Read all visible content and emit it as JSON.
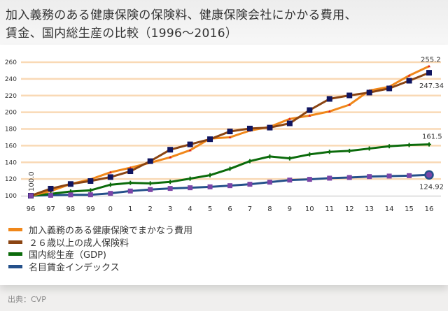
{
  "title": {
    "line1": "加入義務のある健康保険の保険料、健康保険会社にかかる費用、",
    "line2": "賃金、国内総生産の比較（1996～2016）"
  },
  "source": "出典：CVP",
  "chart_data": {
    "type": "line",
    "title": "加入義務のある健康保険の保険料、健康保険会社にかかる費用、賃金、国内総生産の比較（1996～2016）",
    "xlabel": "",
    "ylabel": "",
    "x": [
      "96",
      "97",
      "98",
      "99",
      "0",
      "1",
      "2",
      "3",
      "4",
      "5",
      "6",
      "7",
      "8",
      "9",
      "10",
      "11",
      "12",
      "13",
      "14",
      "15",
      "16"
    ],
    "ylim": [
      100,
      260
    ],
    "yticks": [
      100,
      120,
      140,
      160,
      180,
      200,
      220,
      240,
      260
    ],
    "grid": true,
    "legend_position": "bottom-left",
    "series": [
      {
        "name": "加入義務のある健康保険でまかなう費用",
        "color": "#f0871a",
        "marker": "triangle",
        "markerColor": "#e02020",
        "values": [
          100,
          105.6,
          114,
          119.6,
          128,
          133.5,
          139.5,
          146,
          154.5,
          168.5,
          170,
          178,
          182.5,
          192,
          196,
          201,
          209,
          226,
          230.5,
          244,
          255.2
        ]
      },
      {
        "name": "２６歳以上の成人保険料",
        "color": "#8b4513",
        "marker": "square",
        "markerColor": "#101560",
        "values": [
          100,
          108.4,
          114,
          117.6,
          122.3,
          129.3,
          141.4,
          155.1,
          161.5,
          167.7,
          177,
          180.5,
          181.6,
          186.7,
          202.6,
          216,
          220.2,
          223.6,
          228.6,
          237.8,
          247.34
        ]
      },
      {
        "name": "国内総生産（GDP)",
        "color": "#0b6b0b",
        "marker": "plus",
        "markerColor": "#0b6b0b",
        "values": [
          100,
          102.2,
          105,
          106.4,
          113.1,
          115.4,
          114.8,
          116.5,
          120.4,
          124.6,
          132.2,
          141.4,
          147,
          144.7,
          149.5,
          152.6,
          153.7,
          156.5,
          159.3,
          160.7,
          161.5
        ]
      },
      {
        "name": "名目賃金インデックス",
        "color": "#24508a",
        "marker": "square",
        "markerColor": "#7b45a8",
        "values": [
          100,
          100.5,
          101,
          101.1,
          102.8,
          105.6,
          107.3,
          108.7,
          109.5,
          110.6,
          112,
          113.7,
          116.2,
          118.7,
          119.6,
          121,
          121.8,
          122.9,
          123.5,
          124,
          124.92
        ]
      }
    ],
    "annotations": [
      {
        "text": "100.0",
        "series": 1,
        "index": 0
      },
      {
        "text": "255.2",
        "series": 0,
        "index": 20
      },
      {
        "text": "247.34",
        "series": 1,
        "index": 20
      },
      {
        "text": "161.5",
        "series": 2,
        "index": 20
      },
      {
        "text": "124.92",
        "series": 3,
        "index": 20
      }
    ]
  }
}
